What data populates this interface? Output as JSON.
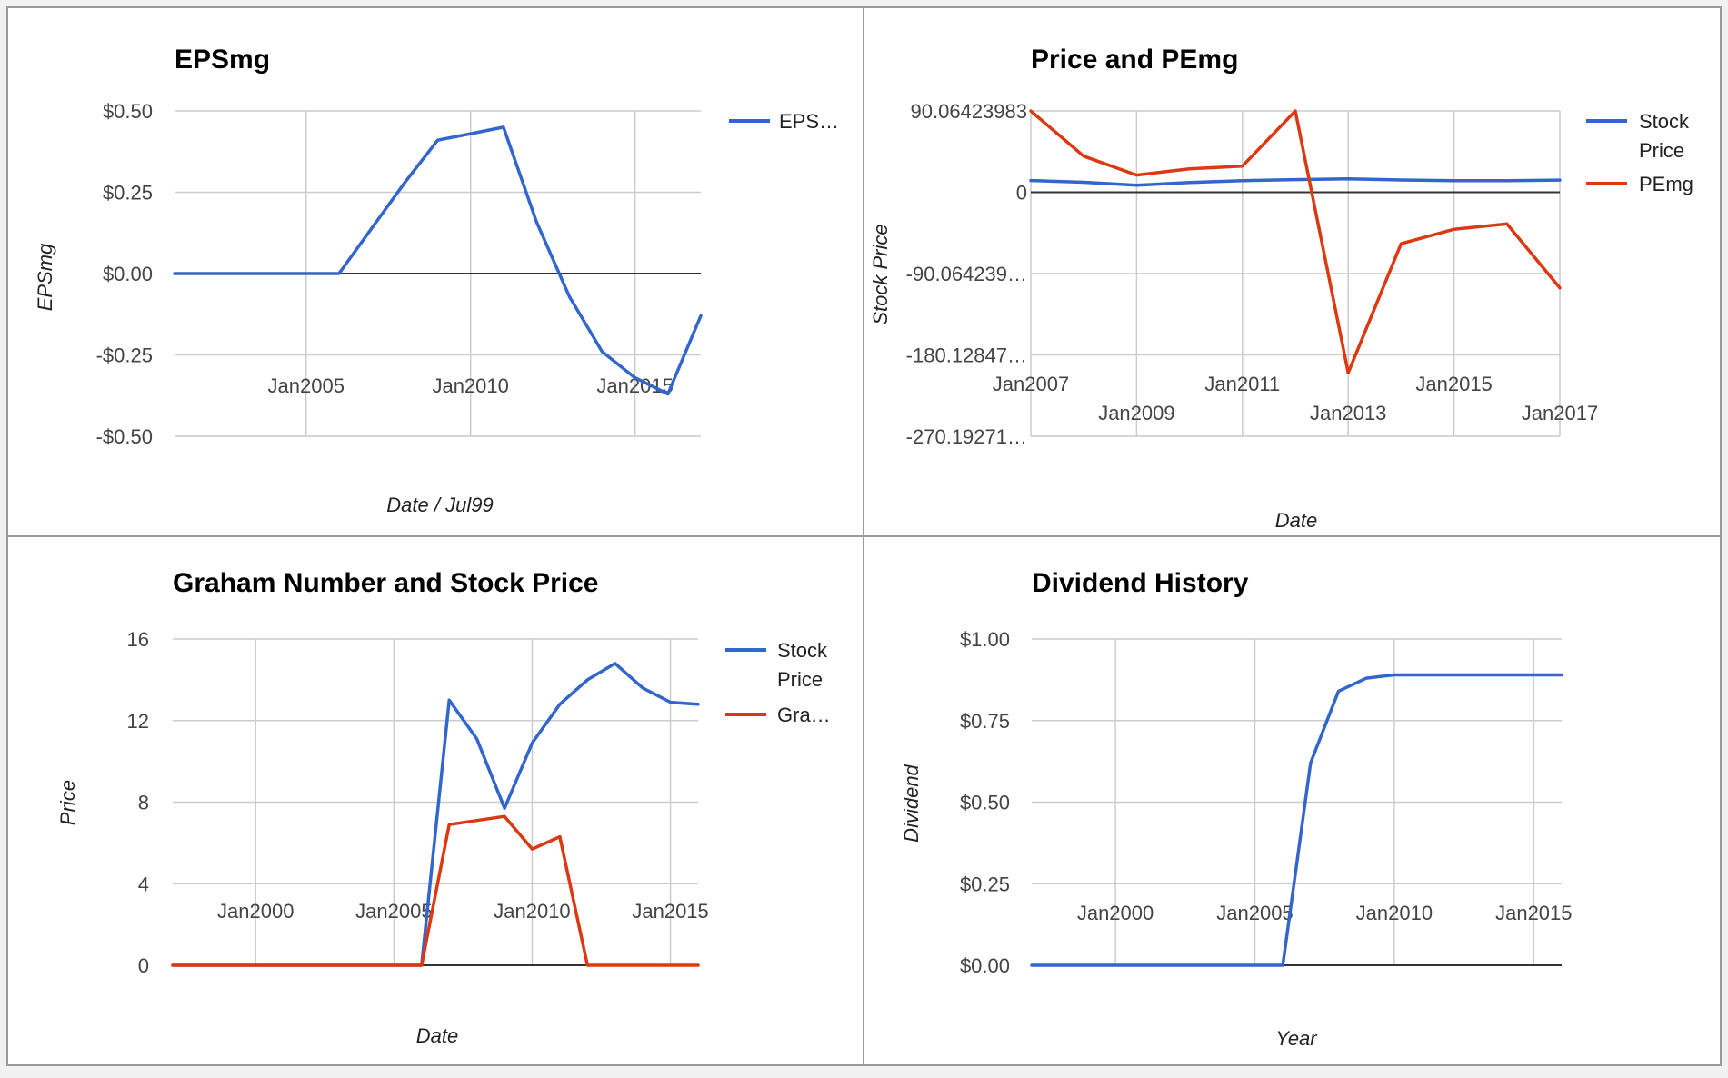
{
  "chart_data": [
    {
      "type": "line",
      "title": "EPSmg",
      "xlabel": "Date / Jul99",
      "ylabel": "EPSmg",
      "x_ticks": [
        "Jan2005",
        "Jan2010",
        "Jan2015"
      ],
      "y_ticks": [
        "$0.50",
        "$0.25",
        "$0.00",
        "-$0.25",
        "-$0.50"
      ],
      "ylim": [
        -0.5,
        0.5
      ],
      "grid": true,
      "legend_position": "right",
      "series": [
        {
          "name": "EPS…",
          "color": "#3366cc",
          "x": [
            2001,
            2006,
            2007,
            2008,
            2009,
            2010,
            2011,
            2012,
            2013,
            2014,
            2015,
            2016,
            2017
          ],
          "values": [
            0.0,
            0.0,
            0.14,
            0.28,
            0.41,
            0.43,
            0.45,
            0.16,
            -0.07,
            -0.24,
            -0.32,
            -0.37,
            -0.13
          ]
        }
      ]
    },
    {
      "type": "line",
      "title": "Price and PEmg",
      "xlabel": "Date",
      "ylabel": "Stock Price",
      "x_ticks": [
        "Jan2007",
        "Jan2009",
        "Jan2011",
        "Jan2013",
        "Jan2015",
        "Jan2017"
      ],
      "y_ticks": [
        "90.06423983",
        "0",
        "-90.064239…",
        "-180.12847…",
        "-270.19271…"
      ],
      "ylim": [
        -270.19271,
        90.06424
      ],
      "grid": true,
      "legend_position": "right",
      "series": [
        {
          "name": "Stock Price",
          "color": "#3366cc",
          "x": [
            2007,
            2008,
            2009,
            2010,
            2011,
            2012,
            2013,
            2014,
            2015,
            2016,
            2017
          ],
          "values": [
            13.0,
            11.1,
            7.7,
            10.9,
            12.8,
            14.0,
            14.8,
            13.6,
            12.9,
            12.8,
            13.5
          ]
        },
        {
          "name": "PEmg",
          "color": "#dc3912",
          "x": [
            2007,
            2008,
            2009,
            2010,
            2011,
            2012,
            2013,
            2014,
            2015,
            2016,
            2017
          ],
          "values": [
            90.0,
            40.0,
            19.0,
            26.0,
            29.0,
            90.0,
            -200.0,
            -57.0,
            -41.0,
            -35.0,
            -106.0
          ]
        }
      ]
    },
    {
      "type": "line",
      "title": "Graham Number and Stock Price",
      "xlabel": "Date",
      "ylabel": "Price",
      "x_ticks": [
        "Jan2000",
        "Jan2005",
        "Jan2010",
        "Jan2015"
      ],
      "y_ticks": [
        "16",
        "12",
        "8",
        "4",
        "0"
      ],
      "ylim": [
        0,
        16
      ],
      "grid": true,
      "legend_position": "right",
      "series": [
        {
          "name": "Stock Price",
          "color": "#3366cc",
          "x": [
            1997,
            2006,
            2007,
            2008,
            2009,
            2010,
            2011,
            2012,
            2013,
            2014,
            2015,
            2016
          ],
          "values": [
            0,
            0,
            13.0,
            11.1,
            7.7,
            10.9,
            12.8,
            14.0,
            14.8,
            13.6,
            12.9,
            12.8
          ]
        },
        {
          "name": "Gra…",
          "color": "#dc3912",
          "x": [
            1997,
            2006,
            2007,
            2008,
            2009,
            2010,
            2011,
            2012,
            2013,
            2014,
            2015,
            2016
          ],
          "values": [
            0,
            0,
            6.9,
            7.1,
            7.3,
            5.7,
            6.3,
            0,
            0,
            0,
            0,
            0
          ]
        }
      ]
    },
    {
      "type": "line",
      "title": "Dividend History",
      "xlabel": "Year",
      "ylabel": "Dividend",
      "x_ticks": [
        "Jan2000",
        "Jan2005",
        "Jan2010",
        "Jan2015"
      ],
      "y_ticks": [
        "$1.00",
        "$0.75",
        "$0.50",
        "$0.25",
        "$0.00"
      ],
      "ylim": [
        0,
        1
      ],
      "grid": true,
      "legend_position": "none",
      "series": [
        {
          "name": "Dividend",
          "color": "#3366cc",
          "x": [
            1997,
            2006,
            2007,
            2008,
            2009,
            2010,
            2016
          ],
          "values": [
            0.0,
            0.0,
            0.62,
            0.84,
            0.88,
            0.89,
            0.89
          ]
        }
      ]
    }
  ]
}
